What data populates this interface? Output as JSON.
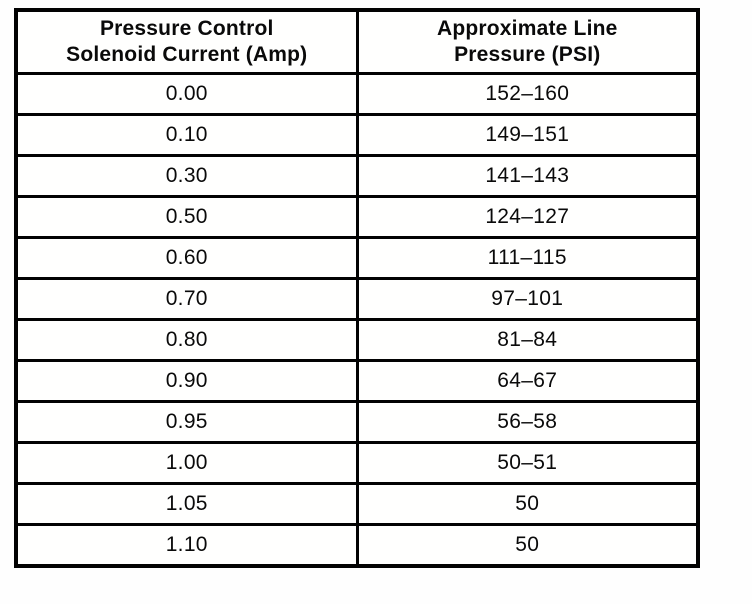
{
  "table": {
    "headers": [
      "Pressure Control\nSolenoid Current (Amp)",
      "Approximate Line\nPressure (PSI)"
    ],
    "rows": [
      [
        "0.00",
        "152–160"
      ],
      [
        "0.10",
        "149–151"
      ],
      [
        "0.30",
        "141–143"
      ],
      [
        "0.50",
        "124–127"
      ],
      [
        "0.60",
        "111–115"
      ],
      [
        "0.70",
        "97–101"
      ],
      [
        "0.80",
        "81–84"
      ],
      [
        "0.90",
        "64–67"
      ],
      [
        "0.95",
        "56–58"
      ],
      [
        "1.00",
        "50–51"
      ],
      [
        "1.05",
        "50"
      ],
      [
        "1.10",
        "50"
      ]
    ]
  }
}
